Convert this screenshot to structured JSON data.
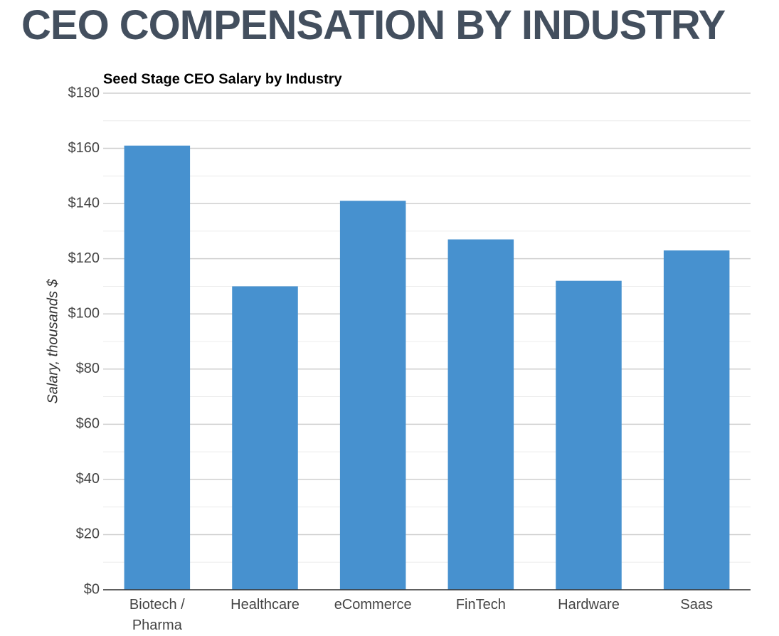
{
  "heading": "CEO COMPENSATION BY INDUSTRY",
  "chart_data": {
    "type": "bar",
    "title": "Seed Stage CEO Salary by Industry",
    "y_label": "Salary, thousands $",
    "categories": [
      "Biotech / Pharma",
      "Healthcare",
      "eCommerce",
      "FinTech",
      "Hardware",
      "Saas"
    ],
    "values": [
      161,
      110,
      141,
      127,
      112,
      123
    ],
    "color": "#4791cf",
    "ylim": [
      0,
      180
    ],
    "yticks": [
      {
        "value": 0,
        "label": "$0"
      },
      {
        "value": 20,
        "label": "$20"
      },
      {
        "value": 40,
        "label": "$40"
      },
      {
        "value": 60,
        "label": "$60"
      },
      {
        "value": 80,
        "label": "$80"
      },
      {
        "value": 100,
        "label": "$100"
      },
      {
        "value": 120,
        "label": "$120"
      },
      {
        "value": 140,
        "label": "$140"
      },
      {
        "value": 160,
        "label": "$160"
      },
      {
        "value": 180,
        "label": "$180"
      }
    ],
    "yminorticks": [
      10,
      30,
      50,
      70,
      90,
      110,
      130,
      150,
      170
    ],
    "grid": true
  }
}
